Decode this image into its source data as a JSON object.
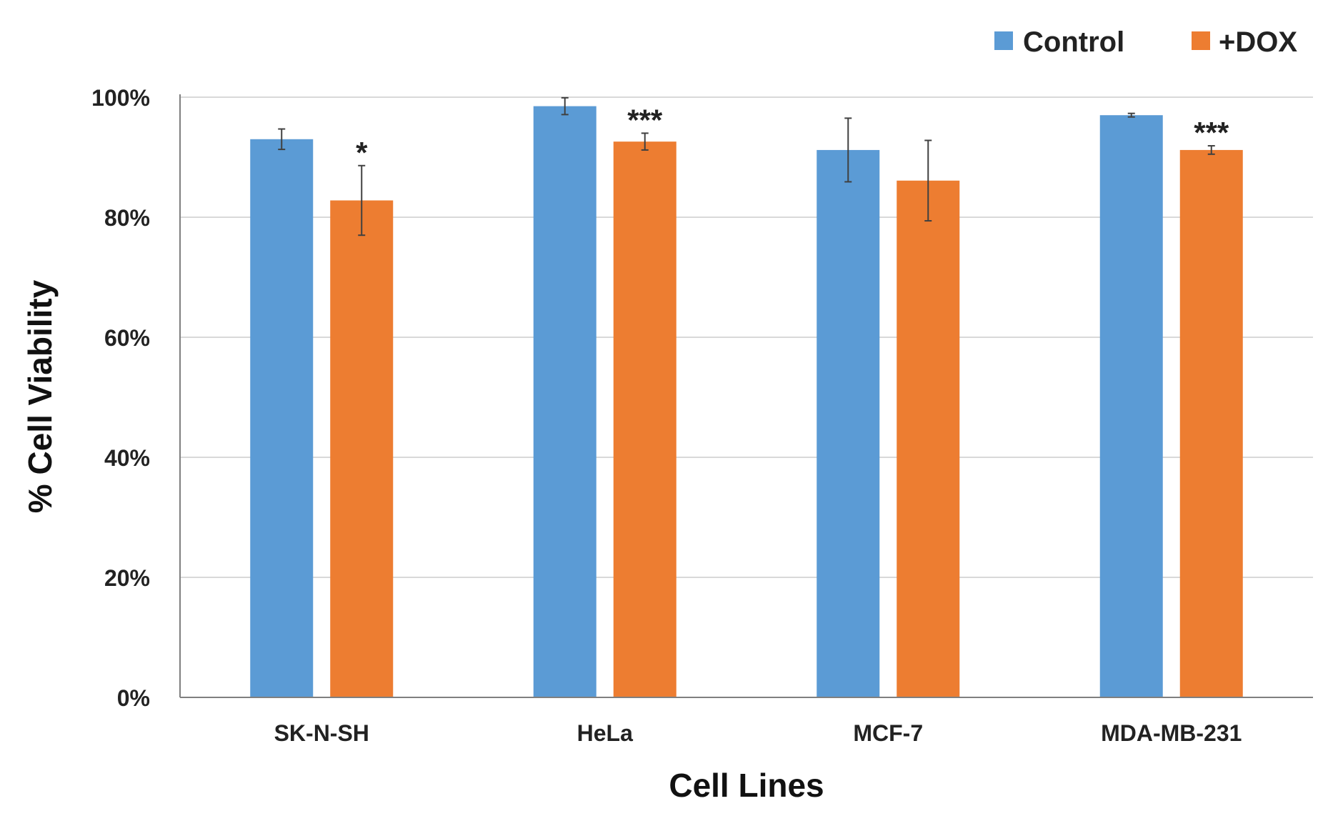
{
  "chart_data": {
    "type": "bar",
    "title": "",
    "xlabel": "Cell Lines",
    "ylabel": "% Cell Viability",
    "ylim": [
      0,
      100
    ],
    "yticks": [
      0,
      20,
      40,
      60,
      80,
      100
    ],
    "ytick_labels": [
      "0%",
      "20%",
      "40%",
      "60%",
      "80%",
      "100%"
    ],
    "grid": true,
    "legend_position": "top-right",
    "categories": [
      "SK-N-SH",
      "HeLa",
      "MCF-7",
      "MDA-MB-231"
    ],
    "series": [
      {
        "name": "Control",
        "color": "#5b9bd5",
        "values": [
          93,
          98.5,
          91.2,
          97
        ],
        "errors": [
          1.7,
          1.4,
          5.3,
          0.3
        ]
      },
      {
        "name": "+DOX",
        "color": "#ed7d31",
        "values": [
          82.8,
          92.6,
          86.1,
          91.2
        ],
        "errors": [
          5.8,
          1.4,
          6.7,
          0.7
        ]
      }
    ],
    "annotations": [
      {
        "category": "SK-N-SH",
        "series": "+DOX",
        "text": "*"
      },
      {
        "category": "HeLa",
        "series": "+DOX",
        "text": "***"
      },
      {
        "category": "MDA-MB-231",
        "series": "+DOX",
        "text": "***"
      }
    ]
  }
}
